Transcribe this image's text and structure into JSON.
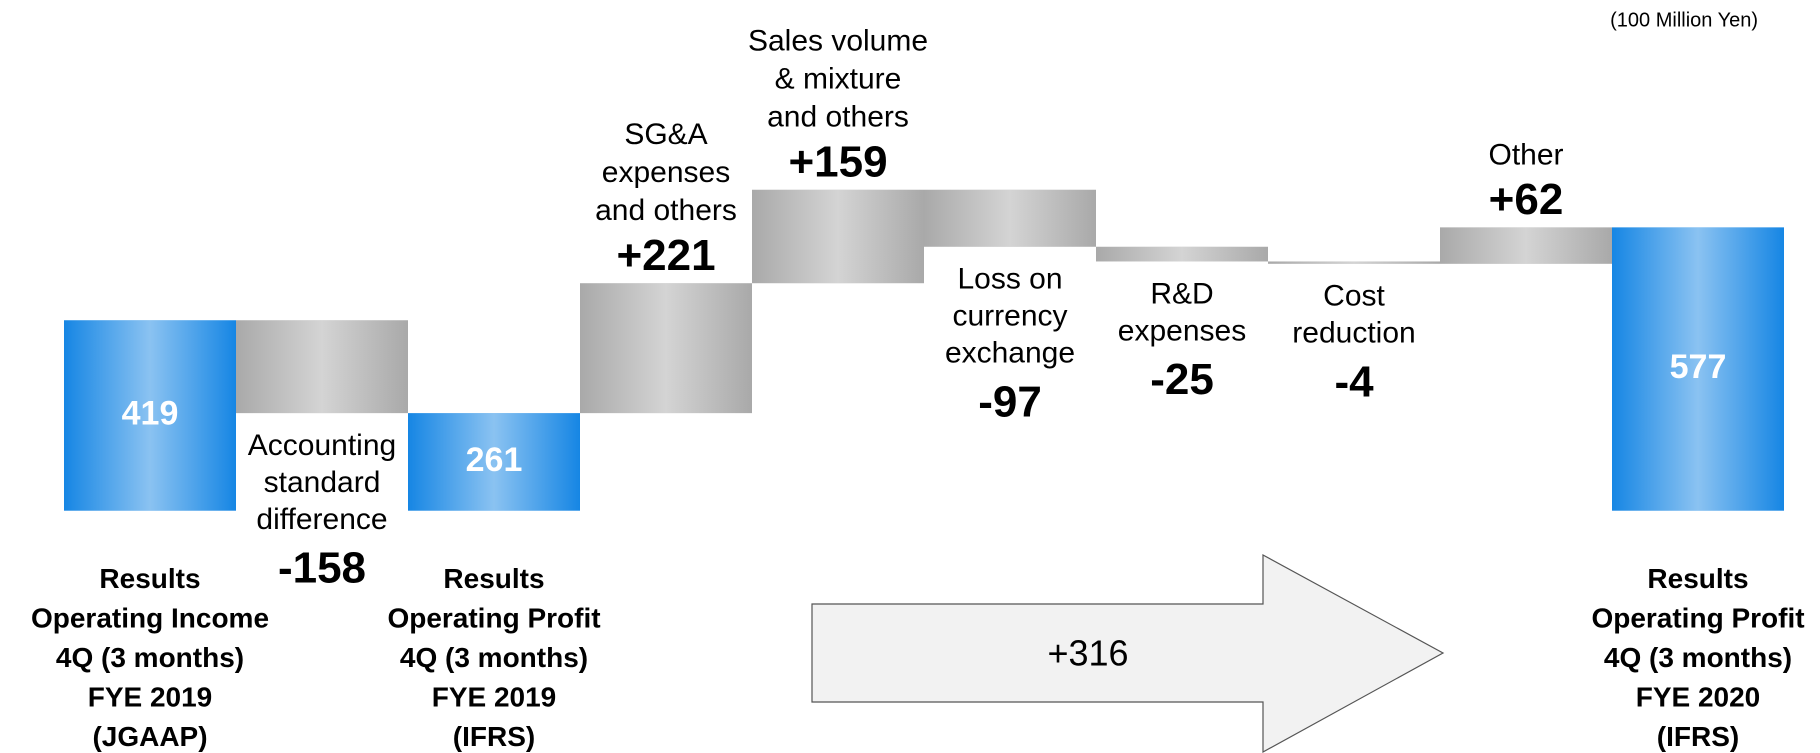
{
  "chart_data": {
    "type": "waterfall",
    "unit_label": "(100 Million Yen)",
    "categories": [
      [
        "Results",
        "Operating Income",
        "4Q (3 months)",
        "FYE 2019",
        "(JGAAP)"
      ],
      [
        "Accounting",
        "standard",
        "difference"
      ],
      [
        "Results",
        "Operating Profit",
        "4Q (3 months)",
        "FYE 2019",
        "(IFRS)"
      ],
      [
        "SG&A",
        "expenses",
        "and others"
      ],
      [
        "Sales volume",
        "& mixture",
        "and others"
      ],
      [
        "Loss on",
        "currency",
        "exchange"
      ],
      [
        "R&D",
        "expenses"
      ],
      [
        "Cost",
        "reduction"
      ],
      [
        "Other"
      ],
      [
        "Results",
        "Operating Profit",
        "4Q (3 months)",
        "FYE 2020",
        "(IFRS)"
      ]
    ],
    "measure": [
      "absolute",
      "relative",
      "absolute",
      "relative",
      "relative",
      "relative",
      "relative",
      "relative",
      "relative",
      "absolute"
    ],
    "values": [
      419,
      -158,
      261,
      221,
      159,
      -97,
      -25,
      -4,
      62,
      577
    ],
    "value_labels": [
      "419",
      "-158",
      "261",
      "+221",
      "+159",
      "-97",
      "-25",
      "-4",
      "+62",
      "577"
    ],
    "total_color": "#1686e4",
    "delta_color": "#a9a9a9",
    "ylim": [
      95,
      900
    ],
    "annotation": "+316"
  }
}
